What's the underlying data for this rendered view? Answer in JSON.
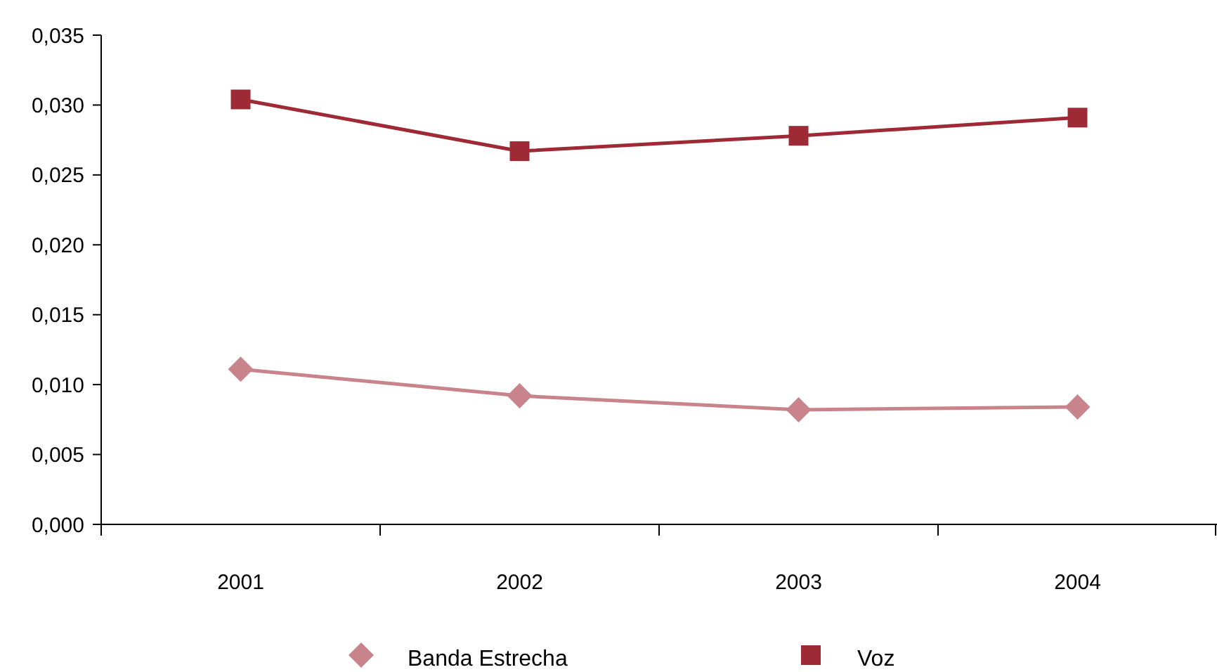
{
  "chart_data": {
    "type": "line",
    "categories": [
      "2001",
      "2002",
      "2003",
      "2004"
    ],
    "series": [
      {
        "name": "Banda Estrecha",
        "color": "#c9848b",
        "marker": "diamond",
        "values": [
          0.0111,
          0.0092,
          0.0082,
          0.0084
        ]
      },
      {
        "name": "Voz",
        "color": "#9e2a36",
        "marker": "square",
        "values": [
          0.0304,
          0.0267,
          0.0278,
          0.0291
        ]
      }
    ],
    "ylim": [
      0,
      0.035
    ],
    "yticks": [
      {
        "value": 0,
        "label": "0,000"
      },
      {
        "value": 0.005,
        "label": "0,005"
      },
      {
        "value": 0.01,
        "label": "0,010"
      },
      {
        "value": 0.015,
        "label": "0,015"
      },
      {
        "value": 0.02,
        "label": "0,020"
      },
      {
        "value": 0.025,
        "label": "0,025"
      },
      {
        "value": 0.03,
        "label": "0,030"
      },
      {
        "value": 0.035,
        "label": "0,035"
      }
    ],
    "legend": "bottom",
    "grid": false
  }
}
